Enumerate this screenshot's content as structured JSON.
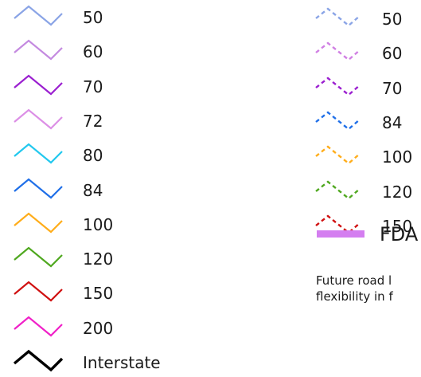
{
  "solid_legend": [
    {
      "label": "50",
      "color": "#8aa4e6"
    },
    {
      "label": "60",
      "color": "#c48ae0"
    },
    {
      "label": "70",
      "color": "#9b1fd0"
    },
    {
      "label": "72",
      "color": "#dc8fe6"
    },
    {
      "label": "80",
      "color": "#22c8ee"
    },
    {
      "label": "84",
      "color": "#1f6fe8"
    },
    {
      "label": "100",
      "color": "#ffad1a"
    },
    {
      "label": "120",
      "color": "#4fa81f"
    },
    {
      "label": "150",
      "color": "#d01010"
    },
    {
      "label": "200",
      "color": "#f020c8"
    },
    {
      "label": "Interstate",
      "color": "#000000"
    }
  ],
  "dashed_legend": [
    {
      "label": "50",
      "color": "#8aa4e6"
    },
    {
      "label": "60",
      "color": "#d07fe3"
    },
    {
      "label": "70",
      "color": "#9b1fd0"
    },
    {
      "label": "84",
      "color": "#1f6fe8"
    },
    {
      "label": "100",
      "color": "#ffad1a"
    },
    {
      "label": "120",
      "color": "#4fa81f"
    },
    {
      "label": "150",
      "color": "#d01010"
    }
  ],
  "fda": {
    "label": "FDA",
    "color": "#d47ef0"
  },
  "future_note": {
    "line1": "Future road l",
    "line2": "flexibility in f"
  }
}
